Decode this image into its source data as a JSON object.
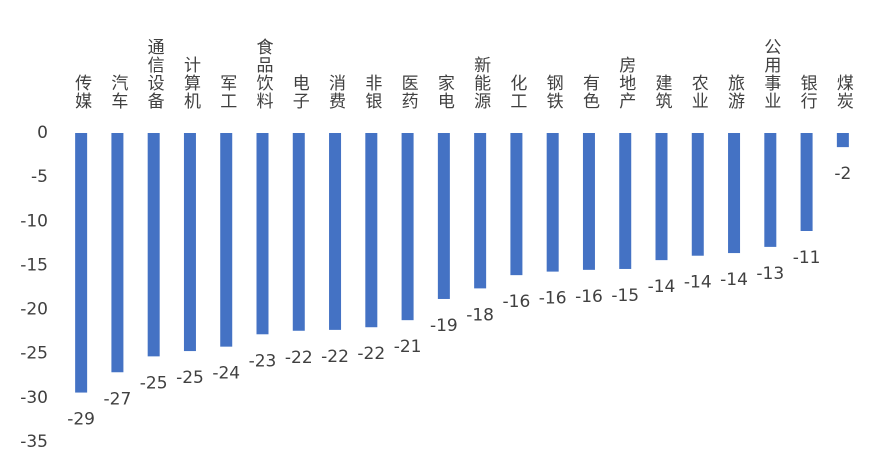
{
  "chart_data": {
    "type": "bar",
    "categories": [
      "传媒",
      "汽车",
      "通信设备",
      "计算机",
      "军工",
      "食品饮料",
      "电子",
      "消费",
      "非银",
      "医药",
      "家电",
      "新能源",
      "化工",
      "钢铁",
      "有色",
      "房地产",
      "建筑",
      "农业",
      "旅游",
      "公用事业",
      "银行",
      "煤炭"
    ],
    "values": [
      -29.4,
      -27.1,
      -25.3,
      -24.7,
      -24.2,
      -22.8,
      -22.4,
      -22.3,
      -22.0,
      -21.2,
      -18.8,
      -17.6,
      -16.1,
      -15.7,
      -15.5,
      -15.4,
      -14.4,
      -13.9,
      -13.6,
      -12.9,
      -11.1,
      -1.6
    ],
    "value_labels": [
      "-29",
      "-27",
      "-25",
      "-25",
      "-24",
      "-23",
      "-22",
      "-22",
      "-22",
      "-21",
      "-19",
      "-18",
      "-16",
      "-16",
      "-16",
      "-15",
      "-14",
      "-14",
      "-14",
      "-13",
      "-11",
      "-2"
    ],
    "color": "#4472c4",
    "ylim": [
      -35,
      0
    ],
    "yticks": [
      0,
      -5,
      -10,
      -15,
      -20,
      -25,
      -30,
      -35
    ],
    "grid": false
  }
}
